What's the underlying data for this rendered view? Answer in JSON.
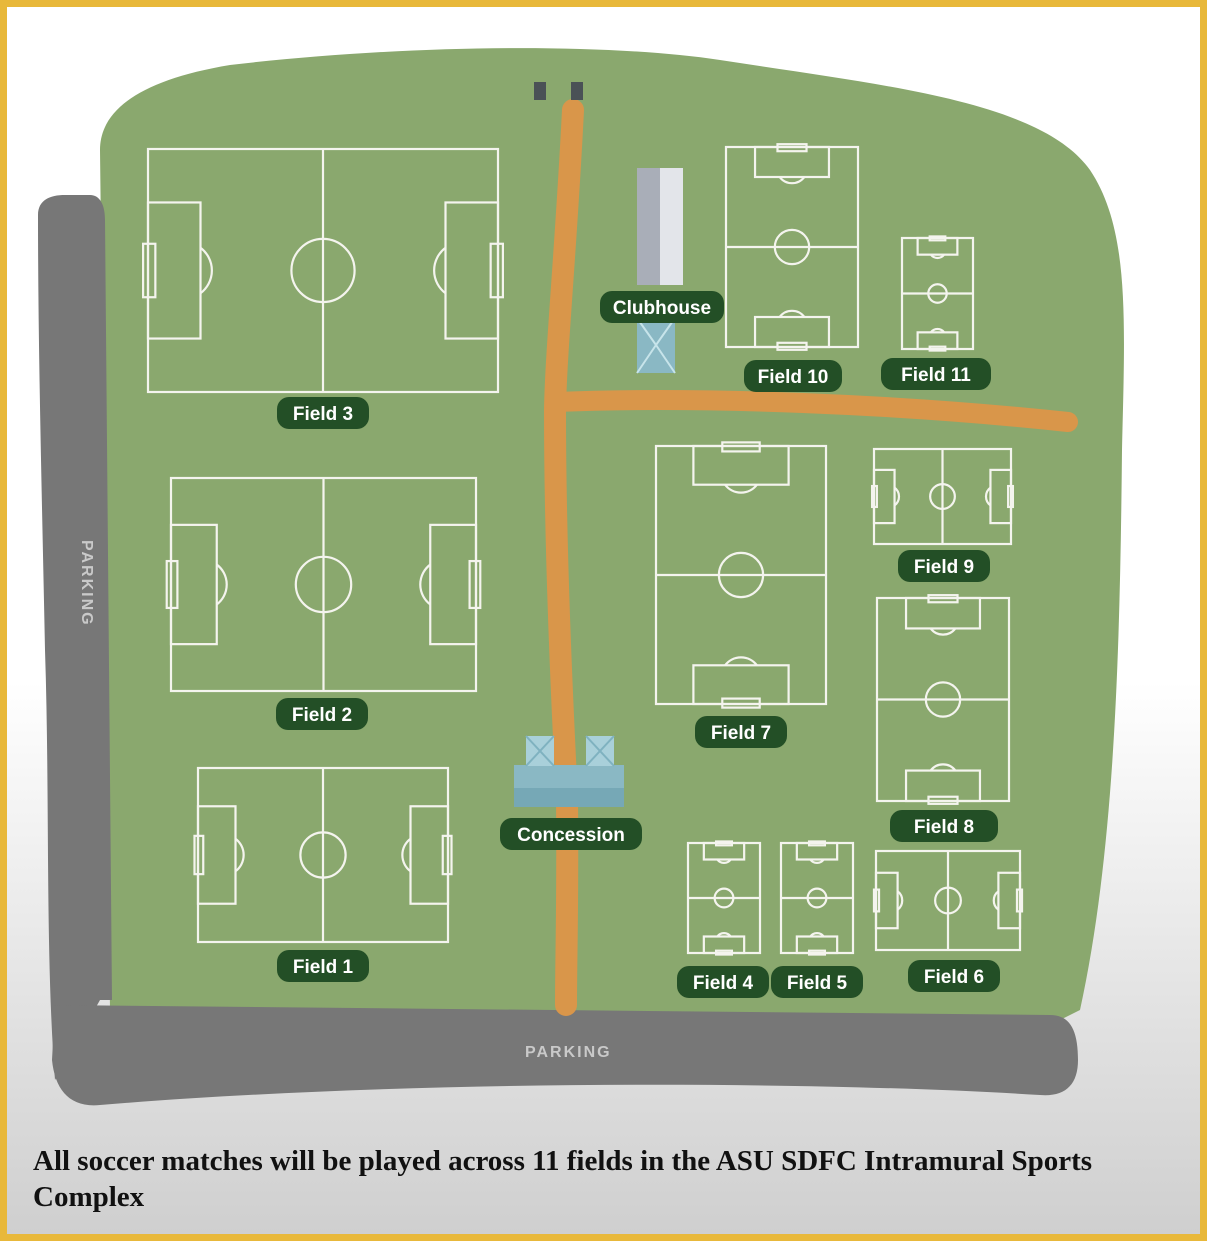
{
  "colors": {
    "frame": "#e8b83a",
    "grass": "#8aa86e",
    "path": "#d9964a",
    "parking": "#777777",
    "label_background": "#234f26",
    "field_lines": "#f4f4ee",
    "building_roof": "#8ab8c4"
  },
  "map": {
    "parking_left_label": "PARKING",
    "parking_bottom_label": "PARKING",
    "clubhouse_label": "Clubhouse",
    "concession_label": "Concession",
    "fields": [
      {
        "id": "field-1",
        "label": "Field 1",
        "orientation": "horizontal"
      },
      {
        "id": "field-2",
        "label": "Field 2",
        "orientation": "horizontal"
      },
      {
        "id": "field-3",
        "label": "Field 3",
        "orientation": "horizontal"
      },
      {
        "id": "field-4",
        "label": "Field 4",
        "orientation": "vertical"
      },
      {
        "id": "field-5",
        "label": "Field 5",
        "orientation": "vertical"
      },
      {
        "id": "field-6",
        "label": "Field 6",
        "orientation": "horizontal"
      },
      {
        "id": "field-7",
        "label": "Field 7",
        "orientation": "vertical"
      },
      {
        "id": "field-8",
        "label": "Field 8",
        "orientation": "vertical"
      },
      {
        "id": "field-9",
        "label": "Field 9",
        "orientation": "horizontal"
      },
      {
        "id": "field-10",
        "label": "Field 10",
        "orientation": "vertical"
      },
      {
        "id": "field-11",
        "label": "Field 11",
        "orientation": "vertical"
      }
    ]
  },
  "caption": "All soccer matches will be played across 11 fields in the ASU SDFC Intramural Sports Complex"
}
